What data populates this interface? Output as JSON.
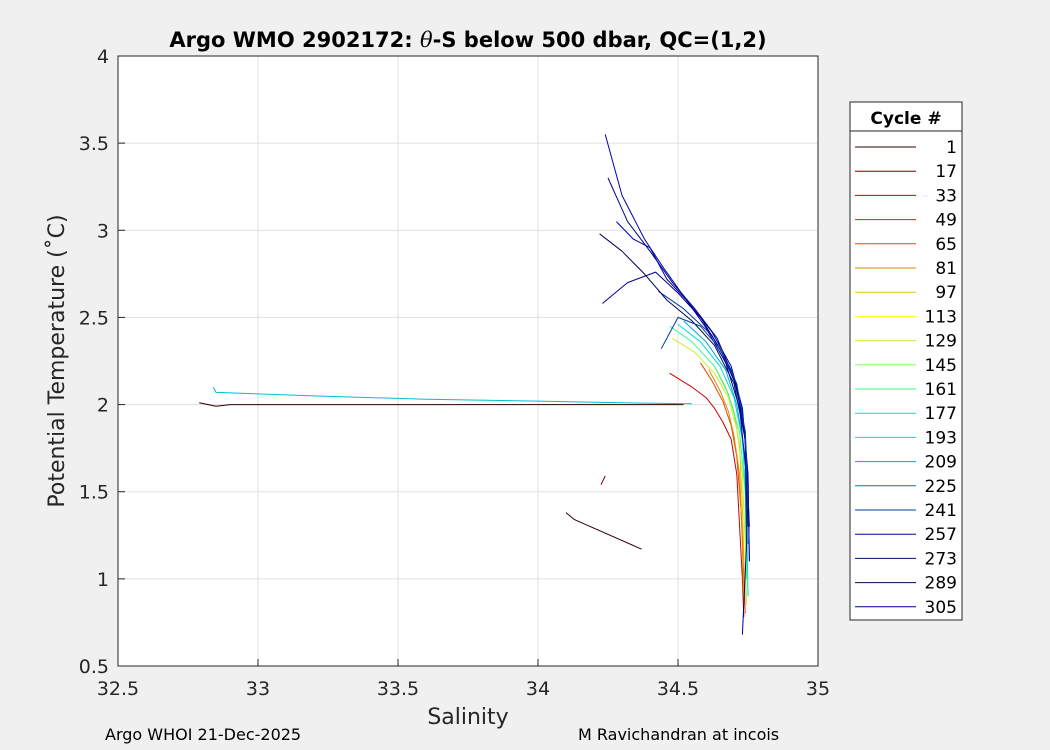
{
  "chart_data": {
    "type": "line",
    "title": "Argo WMO 2902172: θ-S below 500 dbar,  QC=(1,2)",
    "title_parts": {
      "prefix": "Argo WMO 2902172: ",
      "theta": "θ",
      "suffix": "-S below 500 dbar,  QC=(1,2)"
    },
    "xlabel": "Salinity",
    "ylabel": "Potential Temperature (˚C)",
    "xlim": [
      32.5,
      35
    ],
    "ylim": [
      0.5,
      4
    ],
    "xticks": [
      "32.5",
      "33",
      "33.5",
      "34",
      "34.5",
      "35"
    ],
    "yticks": [
      "0.5",
      "1",
      "1.5",
      "2",
      "2.5",
      "3",
      "3.5",
      "4"
    ],
    "grid": true,
    "legend": {
      "title": "Cycle #",
      "placement": "right-outside",
      "entries": [
        {
          "label": "1",
          "color": "#2a0000"
        },
        {
          "label": "17",
          "color": "#780000"
        },
        {
          "label": "33",
          "color": "#c80000"
        },
        {
          "label": "49",
          "color": "#dc1e00"
        },
        {
          "label": "65",
          "color": "#e64b00"
        },
        {
          "label": "81",
          "color": "#d28c00"
        },
        {
          "label": "97",
          "color": "#e6c300"
        },
        {
          "label": "113",
          "color": "#ffff00"
        },
        {
          "label": "129",
          "color": "#c8f032"
        },
        {
          "label": "145",
          "color": "#82ff5a"
        },
        {
          "label": "161",
          "color": "#32ff82"
        },
        {
          "label": "177",
          "color": "#00e6b4"
        },
        {
          "label": "193",
          "color": "#00dcdc"
        },
        {
          "label": "209",
          "color": "#00aad2"
        },
        {
          "label": "225",
          "color": "#0073b4"
        },
        {
          "label": "241",
          "color": "#003ca0"
        },
        {
          "label": "257",
          "color": "#0000b4"
        },
        {
          "label": "273",
          "color": "#000a78"
        },
        {
          "label": "289",
          "color": "#000a50"
        },
        {
          "label": "305",
          "color": "#00008c"
        }
      ]
    },
    "series": [
      {
        "color": "#2a0000",
        "x": [
          32.79,
          32.85,
          32.9,
          33.2,
          33.7,
          34.0,
          34.25,
          34.45,
          34.52
        ],
        "y": [
          2.01,
          1.99,
          2.0,
          2.0,
          2.0,
          2.0,
          2.0,
          2.0,
          2.0
        ]
      },
      {
        "color": "#00c0d0",
        "x": [
          32.84,
          32.85,
          33.2,
          33.6,
          34.0,
          34.3,
          34.55
        ],
        "y": [
          2.1,
          2.07,
          2.05,
          2.03,
          2.02,
          2.01,
          2.005
        ]
      },
      {
        "color": "#2a0000",
        "x": [
          34.1,
          34.13,
          34.37
        ],
        "y": [
          1.38,
          1.34,
          1.17
        ]
      },
      {
        "color": "#780000",
        "x": [
          34.225,
          34.24
        ],
        "y": [
          1.54,
          1.59
        ]
      },
      {
        "color": "#c80000",
        "x": [
          34.47,
          34.55,
          34.6,
          34.63,
          34.66,
          34.69,
          34.71,
          34.72,
          34.73,
          34.735
        ],
        "y": [
          2.18,
          2.1,
          2.04,
          1.98,
          1.9,
          1.8,
          1.6,
          1.3,
          1.0,
          0.78
        ]
      },
      {
        "color": "#e64b00",
        "x": [
          34.58,
          34.62,
          34.66,
          34.69,
          34.71,
          34.725,
          34.735,
          34.74
        ],
        "y": [
          2.24,
          2.14,
          2.02,
          1.88,
          1.7,
          1.4,
          1.1,
          0.8
        ]
      },
      {
        "color": "#d28c00",
        "x": [
          34.61,
          34.65,
          34.68,
          34.7,
          34.72,
          34.73,
          34.735
        ],
        "y": [
          2.2,
          2.08,
          1.96,
          1.82,
          1.6,
          1.2,
          0.85
        ]
      },
      {
        "color": "#e6c300",
        "x": [
          34.63,
          34.67,
          34.7,
          34.72,
          34.73,
          34.74
        ],
        "y": [
          2.22,
          2.1,
          1.96,
          1.76,
          1.4,
          0.9
        ]
      },
      {
        "color": "#c8f032",
        "x": [
          34.48,
          34.56,
          34.63,
          34.68,
          34.71,
          34.73,
          34.74,
          34.745
        ],
        "y": [
          2.38,
          2.3,
          2.18,
          2.04,
          1.86,
          1.6,
          1.2,
          0.85
        ]
      },
      {
        "color": "#32ff82",
        "x": [
          34.47,
          34.55,
          34.63,
          34.68,
          34.72,
          34.74,
          34.745
        ],
        "y": [
          2.45,
          2.36,
          2.22,
          2.06,
          1.84,
          1.5,
          1.0
        ]
      },
      {
        "color": "#00dcdc",
        "x": [
          34.5,
          34.58,
          34.65,
          34.7,
          34.73,
          34.745,
          34.75
        ],
        "y": [
          2.46,
          2.36,
          2.22,
          2.04,
          1.8,
          1.4,
          0.9
        ]
      },
      {
        "color": "#00aad2",
        "x": [
          34.52,
          34.6,
          34.67,
          34.71,
          34.74,
          34.75
        ],
        "y": [
          2.48,
          2.36,
          2.2,
          2.0,
          1.7,
          1.2
        ]
      },
      {
        "color": "#003ca0",
        "x": [
          34.43,
          34.52,
          34.62,
          34.69,
          34.73,
          34.75,
          34.755
        ],
        "y": [
          2.65,
          2.55,
          2.4,
          2.2,
          1.96,
          1.6,
          1.1
        ]
      },
      {
        "color": "#0000b4",
        "x": [
          34.24,
          34.3,
          34.38,
          34.45,
          34.53,
          34.62,
          34.69,
          34.73,
          34.75,
          34.755
        ],
        "y": [
          3.55,
          3.2,
          2.95,
          2.78,
          2.6,
          2.42,
          2.22,
          1.98,
          1.6,
          1.1
        ]
      },
      {
        "color": "#000a78",
        "x": [
          34.25,
          34.32,
          34.4,
          34.48,
          34.56,
          34.64,
          34.7,
          34.74,
          34.755
        ],
        "y": [
          3.3,
          3.05,
          2.88,
          2.7,
          2.55,
          2.38,
          2.15,
          1.85,
          1.3
        ]
      },
      {
        "color": "#000a50",
        "x": [
          34.22,
          34.3,
          34.38,
          34.46,
          34.55,
          34.63,
          34.7,
          34.74,
          34.75
        ],
        "y": [
          2.98,
          2.88,
          2.75,
          2.6,
          2.48,
          2.34,
          2.12,
          1.8,
          1.3
        ]
      },
      {
        "color": "#00008c",
        "x": [
          34.23,
          34.32,
          34.42,
          34.5,
          34.58,
          34.65,
          34.71,
          34.74,
          34.745,
          34.73
        ],
        "y": [
          2.58,
          2.7,
          2.76,
          2.64,
          2.5,
          2.32,
          2.1,
          1.8,
          1.2,
          0.68
        ]
      },
      {
        "color": "#0000b4",
        "x": [
          34.28,
          34.34,
          34.4,
          34.46,
          34.53,
          34.6,
          34.67,
          34.72,
          34.75
        ],
        "y": [
          3.05,
          2.95,
          2.9,
          2.72,
          2.6,
          2.44,
          2.24,
          1.98,
          1.5
        ]
      },
      {
        "color": "#003ca0",
        "x": [
          34.44,
          34.5,
          34.58,
          34.65,
          34.71,
          34.74,
          34.75
        ],
        "y": [
          2.32,
          2.5,
          2.45,
          2.32,
          2.12,
          1.84,
          1.4
        ]
      }
    ]
  },
  "footer": {
    "left": "Argo WHOI 21-Dec-2025",
    "right": "M Ravichandran at incois"
  }
}
